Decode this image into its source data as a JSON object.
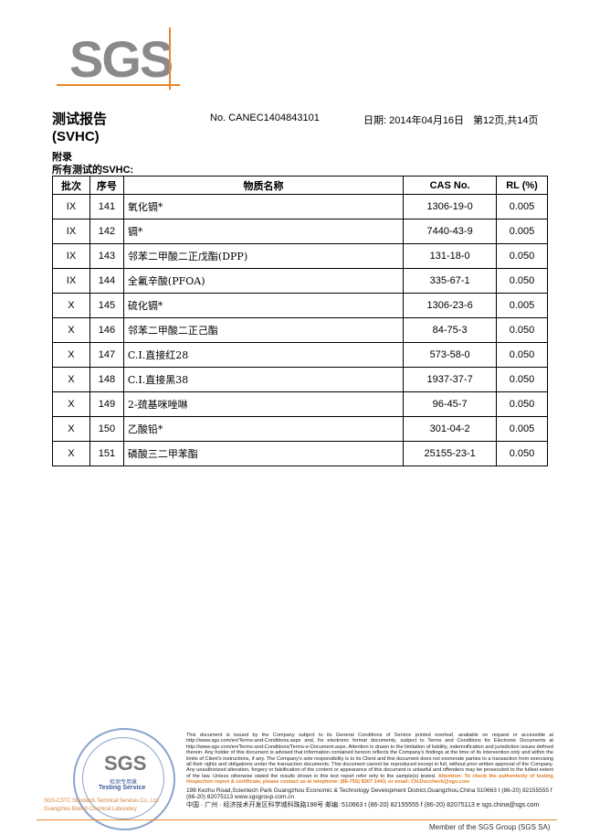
{
  "logo": {
    "text": "SGS",
    "accent": "#e8862a"
  },
  "header": {
    "title": "测试报告",
    "subtitle": "(SVHC)",
    "report_no": "No. CANEC1404843101",
    "date": "日期: 2014年04月16日",
    "page": "第12页,共14页"
  },
  "section": {
    "appendix": "附录",
    "all_tested": "所有测试的SVHC:"
  },
  "table": {
    "headers": [
      "批次",
      "序号",
      "物质名称",
      "CAS No.",
      "RL (%)"
    ],
    "rows": [
      [
        "IX",
        "141",
        "氧化镉*",
        "1306-19-0",
        "0.005"
      ],
      [
        "IX",
        "142",
        "镉*",
        "7440-43-9",
        "0.005"
      ],
      [
        "IX",
        "143",
        "邻苯二甲酸二正戊酯(DPP)",
        "131-18-0",
        "0.050"
      ],
      [
        "IX",
        "144",
        "全氟辛酸(PFOA)",
        "335-67-1",
        "0.050"
      ],
      [
        "X",
        "145",
        "硫化镉*",
        "1306-23-6",
        "0.005"
      ],
      [
        "X",
        "146",
        "邻苯二甲酸二正己酯",
        "84-75-3",
        "0.050"
      ],
      [
        "X",
        "147",
        "C.I.直接红28",
        "573-58-0",
        "0.050"
      ],
      [
        "X",
        "148",
        "C.I.直接黑38",
        "1937-37-7",
        "0.050"
      ],
      [
        "X",
        "149",
        "2-巯基咪唑啉",
        "96-45-7",
        "0.050"
      ],
      [
        "X",
        "150",
        "乙酸铅*",
        "301-04-2",
        "0.005"
      ],
      [
        "X",
        "151",
        "磷酸三二甲苯酯",
        "25155-23-1",
        "0.050"
      ]
    ]
  },
  "footer": {
    "legal": "This document is issued by the Company subject to its General Conditions of Service printed overleaf, available on request or accessible at http://www.sgs.com/en/Terms-and-Conditions.aspx and, for electronic format documents, subject to Terms and Conditions for Electronic Documents at http://www.sgs.com/en/Terms-and-Conditions/Terms-e-Document.aspx. Attention is drawn to the limitation of liability, indemnification and jurisdiction issues defined therein. Any holder of this document is advised that information contained hereon reflects the Company's findings at the time of its intervention only and within the limits of Client's instructions, if any. The Company's sole responsibility is to its Client and this document does not exonerate parties to a transaction from exercising all their rights and obligations under the transaction documents. This document cannot be reproduced except in full, without prior written approval of the Company. Any unauthorized alteration, forgery or falsification of the content or appearance of this document is unlawful and offenders may be prosecuted to the fullest extent of the law. Unless otherwise stated the results shown in this test report refer only to the sample(s) tested.",
    "attention": "Attention: To check the authenticity of testing /inspection report & certificate, please contact us at telephone: (86-755) 8307 1443, or email: CN.Doccheck@sgs.com",
    "address_en": "198 Kezhu Road,Scientech Park Guangzhou Economic & Technology Development District,Guangzhou,China   510663   t (86-20) 82155555   f (86-20) 82075113   www.sgsgroup.com.cn",
    "address_cn": "中国 · 广州 · 经济技术开发区科学城科珠路198号       邮编: 510663   t (86-20) 82155555   f (86-20) 82075113   e sgs.china@sgs.com",
    "member": "Member of the SGS Group (SGS SA)",
    "seal": {
      "sgs": "SGS",
      "label_cn": "检测专用章",
      "label_en": "Testing Service",
      "company": "SGS-CSTC Standards Technical Services Co., Ltd.",
      "lab": "Guangzhou Branch Chemical Laboratory"
    }
  }
}
